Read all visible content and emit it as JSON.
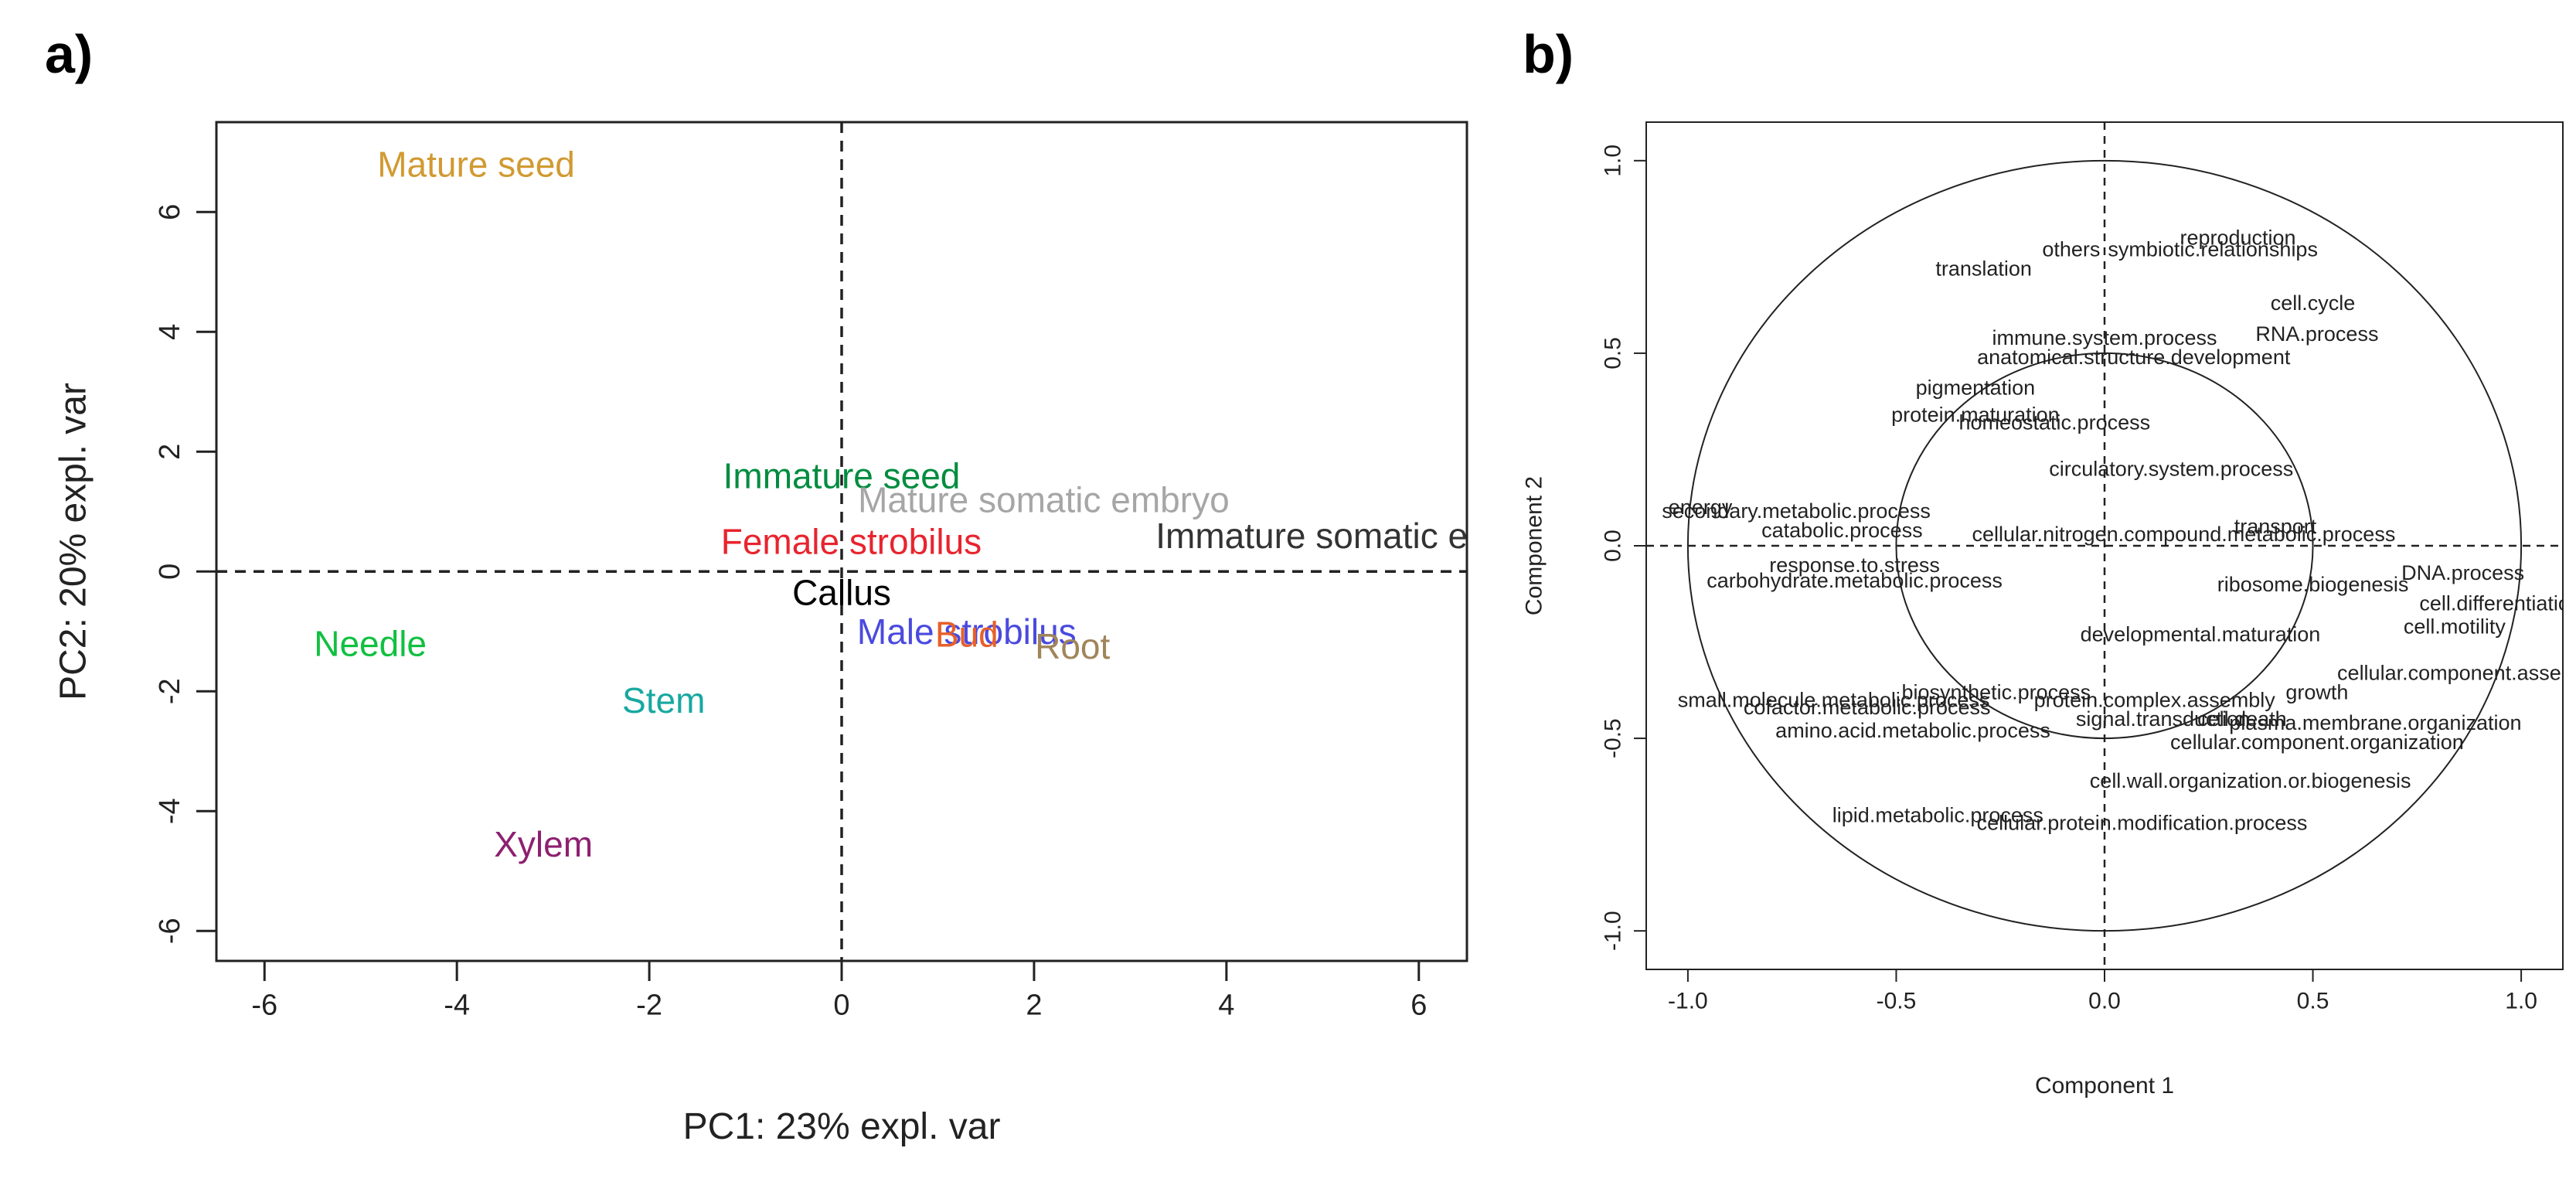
{
  "panel_a_label": "a)",
  "panel_b_label": "b)",
  "chart_data": [
    {
      "type": "scatter",
      "panel": "a)",
      "xlabel": "PC1: 23% expl. var",
      "ylabel": "PC2: 20% expl. var",
      "xlim": [
        -6.5,
        6.5
      ],
      "ylim": [
        -6.5,
        7.5
      ],
      "xticks": [
        -6,
        -4,
        -2,
        0,
        2,
        4,
        6
      ],
      "yticks": [
        -6,
        -4,
        -2,
        0,
        2,
        4,
        6
      ],
      "reference_lines": {
        "x": 0,
        "y": 0,
        "style": "dashed"
      },
      "points": [
        {
          "label": "Mature seed",
          "x": -3.8,
          "y": 6.8,
          "color": "#d19a32"
        },
        {
          "label": "Immature seed",
          "x": 0.0,
          "y": 1.6,
          "color": "#008c3f"
        },
        {
          "label": "Mature somatic embryo",
          "x": 2.1,
          "y": 1.2,
          "color": "#a6a6a6"
        },
        {
          "label": "Immature somatic embryo",
          "x": 5.4,
          "y": 0.6,
          "color": "#333333"
        },
        {
          "label": "Female strobilus",
          "x": 0.1,
          "y": 0.5,
          "color": "#e8242e"
        },
        {
          "label": "Callus",
          "x": 0.0,
          "y": -0.35,
          "color": "#000000"
        },
        {
          "label": "Needle",
          "x": -4.9,
          "y": -1.2,
          "color": "#10c040"
        },
        {
          "label": "Male strobilus",
          "x": 1.3,
          "y": -1.0,
          "color": "#4a4adf"
        },
        {
          "label": "Bud",
          "x": 1.3,
          "y": -1.05,
          "color": "#e8602a"
        },
        {
          "label": "Root",
          "x": 2.4,
          "y": -1.25,
          "color": "#a0855a"
        },
        {
          "label": "Stem",
          "x": -1.85,
          "y": -2.15,
          "color": "#17a8a0"
        },
        {
          "label": "Xylem",
          "x": -3.1,
          "y": -4.55,
          "color": "#8e2070"
        }
      ]
    },
    {
      "type": "scatter",
      "panel": "b)",
      "xlabel": "Component 1",
      "ylabel": "Component 2",
      "xlim": [
        -1.1,
        1.1
      ],
      "ylim": [
        -1.1,
        1.1
      ],
      "xticks": [
        -1.0,
        -0.5,
        0.0,
        0.5,
        1.0
      ],
      "yticks": [
        -1.0,
        -0.5,
        0.0,
        0.5,
        1.0
      ],
      "xtick_labels": [
        "-1.0",
        "-0.5",
        "0.0",
        "0.5",
        "1.0"
      ],
      "ytick_labels": [
        "-1.0",
        "-0.5",
        "0.0",
        "0.5",
        "1.0"
      ],
      "reference_lines": {
        "x": 0,
        "y": 0,
        "style": "dashed"
      },
      "circles": [
        {
          "r": 1.0
        },
        {
          "r": 0.5
        }
      ],
      "points": [
        {
          "label": "reproduction",
          "x": 0.32,
          "y": 0.8
        },
        {
          "label": "others",
          "x": -0.08,
          "y": 0.77
        },
        {
          "label": "symbiotic.relationships",
          "x": 0.26,
          "y": 0.77
        },
        {
          "label": "translation",
          "x": -0.29,
          "y": 0.72
        },
        {
          "label": "cell.cycle",
          "x": 0.5,
          "y": 0.63
        },
        {
          "label": "RNA.process",
          "x": 0.51,
          "y": 0.55
        },
        {
          "label": "immune.system.process",
          "x": 0.0,
          "y": 0.54
        },
        {
          "label": "anatomical.structure.development",
          "x": 0.07,
          "y": 0.49
        },
        {
          "label": "pigmentation",
          "x": -0.31,
          "y": 0.41
        },
        {
          "label": "protein.maturation",
          "x": -0.31,
          "y": 0.34
        },
        {
          "label": "homeostatic.process",
          "x": -0.12,
          "y": 0.32
        },
        {
          "label": "circulatory.system.process",
          "x": 0.16,
          "y": 0.2
        },
        {
          "label": "energy",
          "x": -0.97,
          "y": 0.1
        },
        {
          "label": "secondary.metabolic.process",
          "x": -0.74,
          "y": 0.09
        },
        {
          "label": "catabolic.process",
          "x": -0.63,
          "y": 0.04
        },
        {
          "label": "transport",
          "x": 0.41,
          "y": 0.05
        },
        {
          "label": "cellular.nitrogen.compound.metabolic.process",
          "x": 0.19,
          "y": 0.03
        },
        {
          "label": "response.to.stress",
          "x": -0.6,
          "y": -0.05
        },
        {
          "label": "carbohydrate.metabolic.process",
          "x": -0.6,
          "y": -0.09
        },
        {
          "label": "DNA.process",
          "x": 0.86,
          "y": -0.07
        },
        {
          "label": "ribosome.biogenesis",
          "x": 0.5,
          "y": -0.1
        },
        {
          "label": "cell.differentiation",
          "x": 0.95,
          "y": -0.15
        },
        {
          "label": "cell.motility",
          "x": 0.84,
          "y": -0.21
        },
        {
          "label": "developmental.maturation",
          "x": 0.23,
          "y": -0.23
        },
        {
          "label": "cellular.component.assembly",
          "x": 0.88,
          "y": -0.33
        },
        {
          "label": "biosynthetic.process",
          "x": -0.26,
          "y": -0.38
        },
        {
          "label": "growth",
          "x": 0.51,
          "y": -0.38
        },
        {
          "label": "small.molecule.metabolic.process",
          "x": -0.65,
          "y": -0.4
        },
        {
          "label": "protein.complex.assembly",
          "x": 0.12,
          "y": -0.4
        },
        {
          "label": "cofactor.metabolic.process",
          "x": -0.57,
          "y": -0.42
        },
        {
          "label": "signal.transduction",
          "x": 0.14,
          "y": -0.45
        },
        {
          "label": "cell.death",
          "x": 0.33,
          "y": -0.45
        },
        {
          "label": "plasma.membrane.organization",
          "x": 0.65,
          "y": -0.46
        },
        {
          "label": "amino.acid.metabolic.process",
          "x": -0.46,
          "y": -0.48
        },
        {
          "label": "cellular.component.organization",
          "x": 0.51,
          "y": -0.51
        },
        {
          "label": "cell.wall.organization.or.biogenesis",
          "x": 0.35,
          "y": -0.61
        },
        {
          "label": "lipid.metabolic.process",
          "x": -0.4,
          "y": -0.7
        },
        {
          "label": "cellular.protein.modification.process",
          "x": 0.09,
          "y": -0.72
        }
      ]
    }
  ]
}
